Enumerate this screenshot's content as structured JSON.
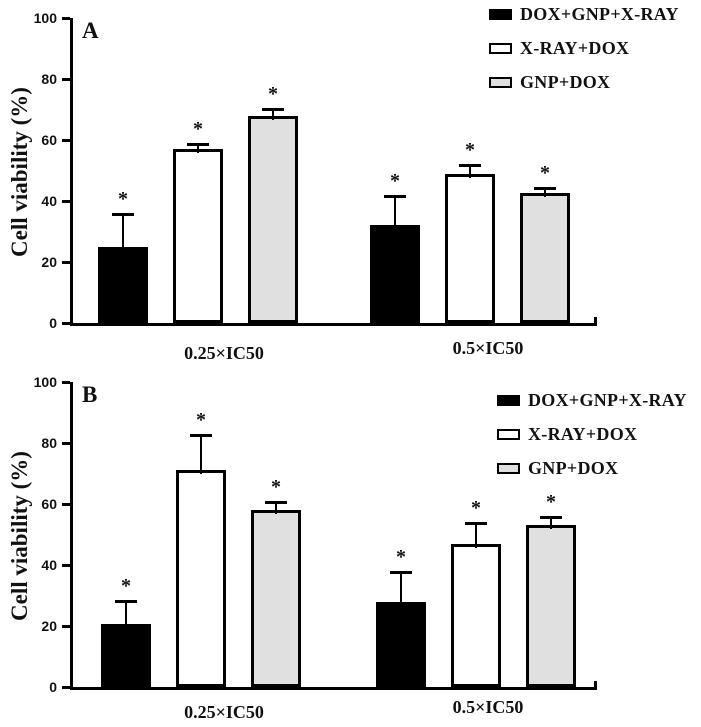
{
  "figure": {
    "panels": [
      {
        "panel_label": "A",
        "ylabel": "Cell viability (%)"
      },
      {
        "panel_label": "B",
        "ylabel": "Cell viability (%)"
      }
    ]
  },
  "chart_data": [
    {
      "type": "bar",
      "panel": "A",
      "title": "",
      "xlabel": "",
      "ylabel": "Cell viability (%)",
      "categories": [
        "0.25×IC50",
        "0.5×IC50"
      ],
      "series": [
        {
          "name": "DOX+GNP+X-RAY",
          "fill": "#000000",
          "values": [
            25,
            32
          ],
          "errors": [
            10,
            9
          ],
          "significance": [
            "*",
            "*"
          ]
        },
        {
          "name": "X-RAY+DOX",
          "fill": "#ffffff",
          "values": [
            57,
            49
          ],
          "errors": [
            1,
            2
          ],
          "significance": [
            "*",
            "*"
          ]
        },
        {
          "name": "GNP+DOX",
          "fill": "#e0e0e0",
          "values": [
            68,
            42.5
          ],
          "errors": [
            1.5,
            1
          ],
          "significance": [
            "*",
            "*"
          ]
        }
      ],
      "yticks": [
        0,
        20,
        40,
        60,
        80,
        100
      ],
      "ylim": [
        0,
        100
      ],
      "grid": false,
      "legend_position": "top-right",
      "error_bars": "upper-sd"
    },
    {
      "type": "bar",
      "panel": "B",
      "title": "",
      "xlabel": "",
      "ylabel": "Cell viability (%)",
      "categories": [
        "0.25×IC50",
        "0.5×IC50"
      ],
      "series": [
        {
          "name": "DOX+GNP+X-RAY",
          "fill": "#000000",
          "values": [
            20.5,
            28
          ],
          "errors": [
            7,
            9
          ],
          "significance": [
            "*",
            "*"
          ]
        },
        {
          "name": "X-RAY+DOX",
          "fill": "#ffffff",
          "values": [
            71,
            47
          ],
          "errors": [
            11,
            6
          ],
          "significance": [
            "*",
            "*"
          ]
        },
        {
          "name": "GNP+DOX",
          "fill": "#e0e0e0",
          "values": [
            58,
            53
          ],
          "errors": [
            2,
            2
          ],
          "significance": [
            "*",
            "*"
          ]
        }
      ],
      "yticks": [
        0,
        20,
        40,
        60,
        80,
        100
      ],
      "ylim": [
        0,
        100
      ],
      "grid": false,
      "legend_position": "top-right",
      "error_bars": "upper-sd"
    }
  ]
}
